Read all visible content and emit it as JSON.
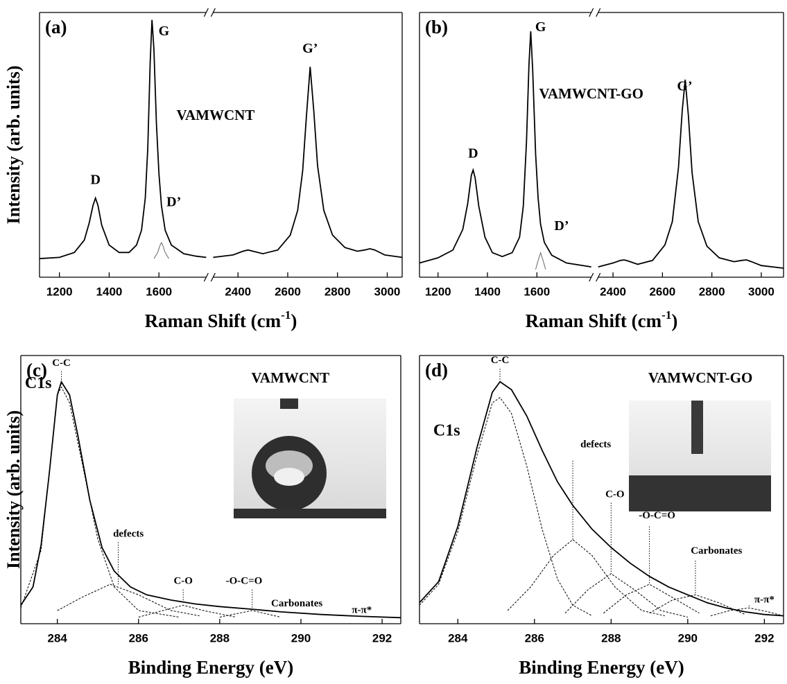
{
  "chart_data": [
    {
      "type": "line",
      "panel_label": "(a)",
      "ylabel": "Intensity (arb. units)",
      "xlabel_parts": [
        "Raman Shift (cm",
        "-1",
        ")"
      ],
      "ylim": [
        -7,
        100
      ],
      "xsegments": [
        {
          "xlim": [
            1120,
            1790
          ],
          "xticks": [
            1200,
            1400,
            1600
          ],
          "series": [
            {
              "color": "#000000",
              "x": [
                1120,
                1200,
                1260,
                1300,
                1320,
                1335,
                1345,
                1355,
                1370,
                1400,
                1440,
                1480,
                1510,
                1530,
                1545,
                1555,
                1565,
                1572,
                1580,
                1590,
                1600,
                1610,
                1625,
                1650,
                1700,
                1750,
                1790
              ],
              "values": [
                0.5,
                1,
                3,
                8,
                15,
                22,
                25,
                22,
                14,
                6,
                3,
                3,
                6,
                12,
                25,
                45,
                80,
                97,
                85,
                55,
                35,
                22,
                12,
                6,
                2.5,
                1.5,
                1
              ]
            },
            {
              "color": "#666666",
              "x": [
                1580,
                1595,
                1605,
                1610,
                1615,
                1625,
                1640
              ],
              "values": [
                0.5,
                3,
                6,
                7,
                6,
                3,
                0.5
              ]
            }
          ]
        },
        {
          "xlim": [
            2300,
            3060
          ],
          "xticks": [
            2400,
            2600,
            2800,
            3000
          ],
          "series": [
            {
              "color": "#000000",
              "x": [
                2300,
                2380,
                2420,
                2440,
                2460,
                2500,
                2560,
                2610,
                2640,
                2660,
                2675,
                2690,
                2705,
                2720,
                2745,
                2780,
                2830,
                2880,
                2910,
                2930,
                2950,
                2990,
                3060
              ],
              "values": [
                1,
                2,
                3.5,
                4,
                3.5,
                2.5,
                4,
                10,
                20,
                36,
                58,
                78,
                60,
                38,
                20,
                10,
                5,
                3.5,
                4,
                4.5,
                4,
                2,
                1
              ]
            }
          ]
        }
      ],
      "annotations": [
        {
          "text": "D",
          "segment": 0,
          "x": 1345,
          "y": 32
        },
        {
          "text": "G",
          "segment": 0,
          "x": 1620,
          "y": 92
        },
        {
          "text": "D’",
          "segment": 0,
          "x": 1660,
          "y": 23
        },
        {
          "text": "G’",
          "segment": 1,
          "x": 2690,
          "y": 85
        }
      ],
      "sample_label": {
        "text": "VAMWCNT",
        "segment": 1,
        "x": 2310,
        "y": 58
      }
    },
    {
      "type": "line",
      "panel_label": "(b)",
      "xlabel_parts": [
        "Raman Shift (cm",
        "-1",
        ")"
      ],
      "ylim": [
        -2.5,
        100
      ],
      "xsegments": [
        {
          "xlim": [
            1125,
            1820
          ],
          "xticks": [
            1200,
            1400,
            1600
          ],
          "series": [
            {
              "color": "#000000",
              "x": [
                1125,
                1200,
                1260,
                1300,
                1320,
                1335,
                1342,
                1350,
                1365,
                1390,
                1420,
                1460,
                1500,
                1530,
                1545,
                1558,
                1568,
                1575,
                1583,
                1595,
                1605,
                1615,
                1630,
                1660,
                1720,
                1820
              ],
              "values": [
                3,
                5,
                8,
                16,
                26,
                37,
                39,
                36,
                25,
                13,
                7,
                5.5,
                7,
                13,
                25,
                50,
                80,
                92.7,
                78,
                45,
                28,
                18,
                11,
                6,
                3,
                1.5
              ]
            },
            {
              "color": "#666666",
              "x": [
                1595,
                1605,
                1615,
                1625,
                1635
              ],
              "values": [
                0.5,
                4,
                7,
                4,
                0.5
              ]
            }
          ]
        },
        {
          "xlim": [
            2340,
            3090
          ],
          "xticks": [
            2400,
            2600,
            2800,
            3000
          ],
          "series": [
            {
              "color": "#000000",
              "x": [
                2340,
                2400,
                2430,
                2445,
                2460,
                2500,
                2560,
                2610,
                2640,
                2665,
                2680,
                2692,
                2705,
                2720,
                2745,
                2780,
                2830,
                2890,
                2920,
                2940,
                2960,
                3000,
                3090
              ],
              "values": [
                1.5,
                3,
                4,
                4.2,
                3.8,
                2.5,
                4,
                10,
                19,
                40,
                62,
                74,
                60,
                38,
                19,
                9.5,
                5,
                3.5,
                4,
                4.2,
                3.5,
                2,
                1
              ]
            }
          ]
        }
      ],
      "annotations": [
        {
          "text": "D",
          "segment": 0,
          "x": 1342,
          "y": 45
        },
        {
          "text": "G",
          "segment": 0,
          "x": 1615,
          "y": 94
        },
        {
          "text": "D’",
          "segment": 0,
          "x": 1700,
          "y": 17
        },
        {
          "text": "G’",
          "segment": 1,
          "x": 2690,
          "y": 71
        }
      ],
      "sample_label": {
        "text": "VAMWCNT-GO",
        "segment": 0,
        "x": 1820,
        "y": 68
      }
    },
    {
      "type": "line",
      "panel_label": "(c)",
      "ylabel": "Intensity (arb. units)",
      "xlabel_parts": [
        "Binding Energy (eV)"
      ],
      "xlim": [
        283.1,
        292.46
      ],
      "xticks": [
        284,
        286,
        288,
        290,
        292
      ],
      "ylim": [
        -2,
        100
      ],
      "series": [
        {
          "color": "#000000",
          "x": [
            283.1,
            283.4,
            283.6,
            283.8,
            284.0,
            284.1,
            284.3,
            284.5,
            284.8,
            285.1,
            285.4,
            285.8,
            286.2,
            286.8,
            287.4,
            288,
            288.8,
            289.5,
            290.5,
            291.5,
            292.46
          ],
          "values": [
            5,
            12,
            28,
            55,
            85,
            90,
            85,
            70,
            45,
            27,
            18,
            12,
            9,
            7,
            5.5,
            4.5,
            3.5,
            2.5,
            1.5,
            0.8,
            0.3
          ]
        },
        {
          "color": "#000000",
          "dash": true,
          "x": [
            283.1,
            283.6,
            284.0,
            284.1,
            284.3,
            284.6,
            285.0,
            285.4,
            286,
            287
          ],
          "values": [
            4,
            26,
            85,
            88,
            82,
            60,
            30,
            12,
            3,
            0.5
          ]
        },
        {
          "color": "#000000",
          "dash": true,
          "x": [
            284,
            284.6,
            285.3,
            286,
            286.8,
            287.5
          ],
          "values": [
            3,
            8,
            13,
            9,
            3,
            1
          ]
        },
        {
          "color": "#000000",
          "dash": true,
          "x": [
            286,
            286.6,
            287.1,
            287.6,
            288.4
          ],
          "values": [
            0.5,
            3,
            5,
            3,
            0.5
          ]
        },
        {
          "color": "#000000",
          "dash": true,
          "x": [
            288,
            288.8,
            289.5
          ],
          "values": [
            0.5,
            3,
            0.5
          ]
        }
      ],
      "annotations": [
        {
          "text": "C-C",
          "x": 284.1,
          "y": 97,
          "line": [
            284.1,
            94,
            89
          ]
        },
        {
          "text": "defects",
          "x": 285.75,
          "y": 32,
          "line": [
            285.5,
            29,
            13
          ]
        },
        {
          "text": "C-O",
          "x": 287.1,
          "y": 14,
          "line": [
            287.1,
            11,
            5.5
          ]
        },
        {
          "text": "-O-C=O",
          "x": 288.6,
          "y": 14,
          "line": [
            288.8,
            11,
            3.5
          ]
        },
        {
          "text": "Carbonates",
          "x": 289.9,
          "y": 5.5
        },
        {
          "text": "π-π*",
          "x": 291.5,
          "y": 3
        }
      ],
      "region_label": {
        "text": "C1s",
        "x": 283.2,
        "y": 89
      },
      "sample_label": {
        "text": "VAMWCNT",
        "x": 289.74,
        "y": 91
      }
    },
    {
      "type": "line",
      "panel_label": "(d)",
      "xlabel_parts": [
        "Binding Energy (eV)"
      ],
      "xlim": [
        283.0,
        292.5
      ],
      "xticks": [
        284,
        286,
        288,
        290,
        292
      ],
      "ylim": [
        -2,
        100
      ],
      "series": [
        {
          "color": "#000000",
          "x": [
            283,
            283.5,
            284,
            284.5,
            284.9,
            285.1,
            285.4,
            285.8,
            286.2,
            286.6,
            287,
            287.5,
            288,
            288.5,
            289,
            289.5,
            290,
            290.5,
            291,
            291.5,
            292,
            292.5
          ],
          "values": [
            6,
            14,
            35,
            65,
            86,
            90,
            87,
            77,
            64,
            52,
            43,
            34,
            27,
            21,
            16,
            12,
            9,
            6,
            4,
            2.5,
            1.5,
            1
          ]
        },
        {
          "color": "#000000",
          "dash": true,
          "x": [
            283,
            283.5,
            284,
            284.5,
            284.9,
            285.1,
            285.4,
            285.8,
            286.2,
            286.6,
            287,
            287.5
          ],
          "values": [
            5,
            13,
            33,
            62,
            82,
            84,
            78,
            58,
            34,
            15,
            5,
            1
          ]
        },
        {
          "color": "#000000",
          "dash": true,
          "x": [
            285.3,
            285.9,
            286.5,
            287.0,
            287.5,
            288.1,
            288.8,
            289.4
          ],
          "values": [
            3,
            12,
            24,
            30,
            24,
            12,
            3,
            1
          ]
        },
        {
          "color": "#000000",
          "dash": true,
          "x": [
            286.8,
            287.4,
            288.0,
            288.6,
            289.3,
            290
          ],
          "values": [
            2,
            11,
            17,
            11,
            3,
            0.5
          ]
        },
        {
          "color": "#000000",
          "dash": true,
          "x": [
            287.8,
            288.4,
            289.0,
            289.6,
            290.3
          ],
          "values": [
            2,
            9,
            13,
            8,
            2
          ]
        },
        {
          "color": "#000000",
          "dash": true,
          "x": [
            289,
            289.6,
            290.2,
            290.8,
            291.5
          ],
          "values": [
            2,
            7,
            9,
            6,
            1.5
          ]
        },
        {
          "color": "#000000",
          "dash": true,
          "x": [
            290.6,
            291.1,
            291.6,
            292.1,
            292.5
          ],
          "values": [
            1,
            3,
            4,
            2.5,
            1
          ]
        }
      ],
      "annotations": [
        {
          "text": "C-C",
          "x": 285.1,
          "y": 98,
          "line": [
            285.1,
            95,
            90
          ]
        },
        {
          "text": "defects",
          "x": 287.6,
          "y": 66,
          "line": [
            287.0,
            60,
            30
          ]
        },
        {
          "text": "C-O",
          "x": 288.1,
          "y": 47,
          "line": [
            288.0,
            44,
            17
          ]
        },
        {
          "text": "-O-C=O",
          "x": 289.2,
          "y": 39,
          "line": [
            289.0,
            35,
            13
          ]
        },
        {
          "text": "Carbonates",
          "x": 290.75,
          "y": 25.5,
          "line": [
            290.2,
            22,
            9
          ]
        },
        {
          "text": "π-π*",
          "x": 292.0,
          "y": 7,
          "line": [
            291.6,
            5,
            4
          ]
        }
      ],
      "region_label": {
        "text": "C1s",
        "x": 283.36,
        "y": 71
      },
      "sample_label": {
        "text": "VAMWCNT-GO",
        "x": 290.33,
        "y": 91
      }
    }
  ]
}
